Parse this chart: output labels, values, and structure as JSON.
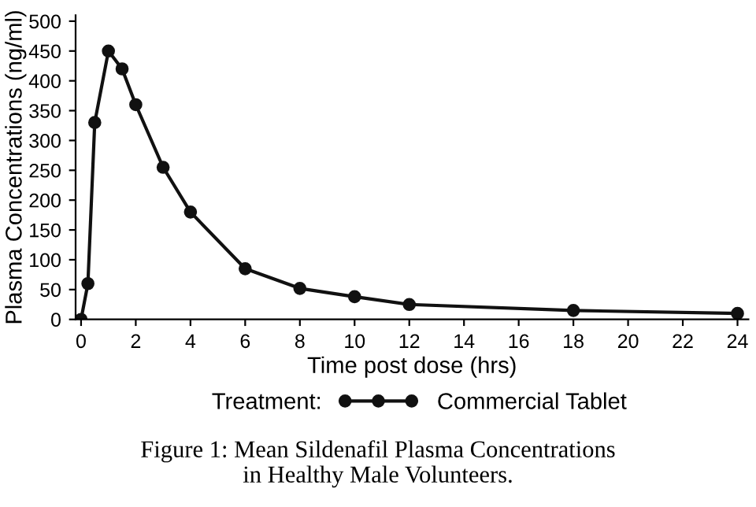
{
  "chart_data": {
    "type": "line",
    "xlabel": "Time post dose (hrs)",
    "ylabel": "Plasma Concentrations (ng/ml)",
    "legend_title": "Treatment:",
    "x": [
      0,
      0.25,
      0.5,
      1,
      1.5,
      2,
      3,
      4,
      6,
      8,
      10,
      12,
      18,
      24
    ],
    "series": [
      {
        "name": "Commercial Tablet",
        "color": "#111111",
        "values": [
          0,
          60,
          330,
          450,
          420,
          360,
          255,
          180,
          85,
          52,
          38,
          25,
          15,
          10
        ]
      }
    ],
    "xlim": [
      -0.2,
      24.4
    ],
    "xticks": [
      0,
      2,
      4,
      6,
      8,
      10,
      12,
      14,
      16,
      18,
      20,
      22,
      24
    ],
    "ylim": [
      0,
      510
    ],
    "yticks": [
      0,
      50,
      100,
      150,
      200,
      250,
      300,
      350,
      400,
      450,
      500
    ],
    "marker": "circle",
    "line_style": "solid",
    "grid": false,
    "legend": "bottom",
    "annotations": [
      "Figure 1: Mean Sildenafil Plasma Concentrations\nin Healthy Male Volunteers."
    ]
  }
}
